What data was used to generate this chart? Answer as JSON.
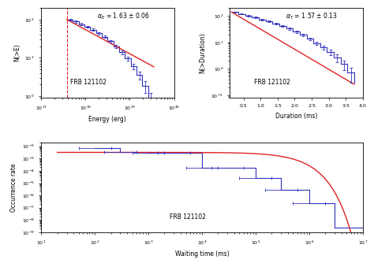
{
  "panel1": {
    "xlabel": "Energy (erg)",
    "ylabel": "N(>E)",
    "annotation": "α_E = 1.63 ± 0.06",
    "label": "FRB 121102",
    "xlim": [
      1e+37,
      1e+40
    ],
    "ylim": [
      0.9,
      200
    ],
    "dashed_x": 3.8e+37,
    "alpha_pl": 1.63,
    "fit_x_start": 3.8e+37,
    "fit_x_end": 3.5e+39,
    "fit_N0": 100,
    "fit_x0": 3.8e+37,
    "bins_x": [
      3.8e+37,
      5.2e+37,
      7e+37,
      9.5e+37,
      1.28e+38,
      1.73e+38,
      2.34e+38,
      3.16e+38,
      4.27e+38,
      5.77e+38,
      7.79e+38,
      1.05e+39,
      1.42e+39,
      1.92e+39,
      2.59e+39,
      3.5e+39
    ],
    "cdf_y": [
      100,
      88,
      76,
      65,
      54,
      44,
      35,
      27,
      20,
      14,
      9.5,
      6.0,
      3.5,
      1.8,
      0.8,
      0.3
    ],
    "err_y": [
      5,
      5,
      4.5,
      4,
      3.5,
      3,
      2.5,
      2.2,
      1.8,
      1.5,
      1.2,
      1.0,
      0.8,
      0.6,
      0.4,
      0.2
    ]
  },
  "panel2": {
    "xlabel": "Duration (ms)",
    "ylabel": "N(>Duration)",
    "annotation": "α_T = 1.57 ± 0.13",
    "label": "FRB 121102",
    "xlim": [
      0.1,
      4.0
    ],
    "ylim": [
      0.08,
      200
    ],
    "fit_x_start": 0.15,
    "fit_x_end": 3.75,
    "fit_N0": 140,
    "fit_decay": 1.75,
    "bins_x": [
      0.15,
      0.35,
      0.55,
      0.75,
      0.95,
      1.15,
      1.35,
      1.55,
      1.75,
      1.95,
      2.15,
      2.35,
      2.55,
      2.75,
      2.95,
      3.15,
      3.35,
      3.55,
      3.75
    ],
    "cdf_y": [
      140,
      120,
      103,
      88,
      74,
      62,
      51,
      41,
      33,
      25,
      19,
      13.5,
      9.5,
      6.5,
      4.2,
      2.6,
      1.5,
      0.7,
      0.3
    ],
    "err_y": [
      7,
      6,
      5.5,
      5,
      4.5,
      4,
      3.5,
      3,
      2.5,
      2.2,
      2,
      1.7,
      1.4,
      1.2,
      1.0,
      0.8,
      0.6,
      0.4,
      0.3
    ]
  },
  "panel3": {
    "xlabel": "Waiting time (ms)",
    "ylabel": "Occurrence rate",
    "label": "FRB 121102",
    "xlim": [
      10.0,
      10000000.0
    ],
    "ylim": [
      1e-09,
      0.02
    ],
    "fit_rate0": 0.0032,
    "fit_lam": 2.5e-06,
    "bins_x": [
      100.0,
      300.0,
      1000.0,
      3000.0,
      10000.0,
      30000.0,
      100000.0,
      300000.0,
      1000000.0,
      3000000.0,
      10000000.0
    ],
    "hist_y": [
      0.007,
      0.0032,
      0.003,
      0.003,
      0.00018,
      0.00018,
      2.5e-05,
      3e-06,
      2.5e-07,
      2.5e-09,
      0
    ],
    "err_x_centers": [
      100.0,
      300.0,
      1000.0,
      3000.0,
      10000.0,
      30000.0,
      100000.0,
      300000.0,
      1000000.0
    ]
  },
  "colors": {
    "blue": "#3333bb",
    "red": "#dd2222"
  }
}
